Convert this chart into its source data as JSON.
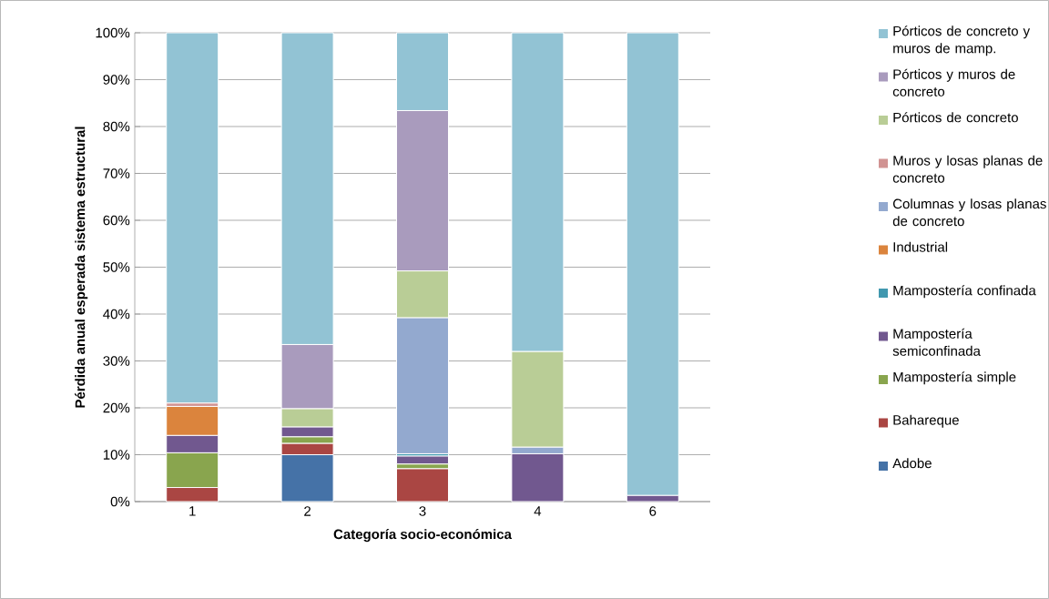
{
  "chart_data": {
    "type": "bar",
    "stacked": true,
    "xlabel": "Categoría socio-económica",
    "ylabel": "Pérdida anual esperada sistema estructural",
    "categories": [
      "1",
      "2",
      "3",
      "4",
      "6"
    ],
    "series": [
      {
        "name": "Adobe",
        "color": "#4572a7",
        "values": [
          0,
          10.0,
          0,
          0,
          0
        ]
      },
      {
        "name": "Bahareque",
        "color": "#aa4643",
        "values": [
          3.0,
          2.4,
          7.0,
          0,
          0
        ]
      },
      {
        "name": "Mampostería simple",
        "color": "#89a54e",
        "values": [
          7.4,
          1.4,
          1.0,
          0,
          0
        ]
      },
      {
        "name": "Mampostería semiconfinada",
        "color": "#71588f",
        "values": [
          3.7,
          2.1,
          1.7,
          10.2,
          1.3
        ]
      },
      {
        "name": "Mampostería confinada",
        "color": "#4198af",
        "values": [
          0,
          0,
          0.5,
          0,
          0
        ]
      },
      {
        "name": "Industrial",
        "color": "#db843d",
        "values": [
          6.2,
          0,
          0,
          0,
          0
        ]
      },
      {
        "name": "Columnas y losas planas de concreto",
        "color": "#93a9cf",
        "values": [
          0,
          0,
          29.0,
          1.4,
          0
        ]
      },
      {
        "name": "Muros y losas planas de concreto",
        "color": "#d19392",
        "values": [
          0.7,
          0,
          0,
          0,
          0
        ]
      },
      {
        "name": "Pórticos de concreto",
        "color": "#b9cd96",
        "values": [
          0,
          3.9,
          10.0,
          20.4,
          0
        ]
      },
      {
        "name": "Pórticos y muros de concreto",
        "color": "#a99bbd",
        "values": [
          0,
          13.7,
          34.2,
          0,
          0
        ]
      },
      {
        "name": "Pórticos de concreto y muros de mamp.",
        "color": "#92c3d4",
        "values": [
          79.0,
          66.5,
          16.6,
          68.0,
          98.7
        ]
      }
    ],
    "ylim": [
      0,
      100
    ],
    "yticks": [
      {
        "value": 0,
        "label": "0%"
      },
      {
        "value": 10,
        "label": "10%"
      },
      {
        "value": 20,
        "label": "20%"
      },
      {
        "value": 30,
        "label": "30%"
      },
      {
        "value": 40,
        "label": "40%"
      },
      {
        "value": 50,
        "label": "50%"
      },
      {
        "value": 60,
        "label": "60%"
      },
      {
        "value": 70,
        "label": "70%"
      },
      {
        "value": 80,
        "label": "80%"
      },
      {
        "value": 90,
        "label": "90%"
      },
      {
        "value": 100,
        "label": "100%"
      }
    ],
    "grid": "y",
    "legend": "right"
  }
}
